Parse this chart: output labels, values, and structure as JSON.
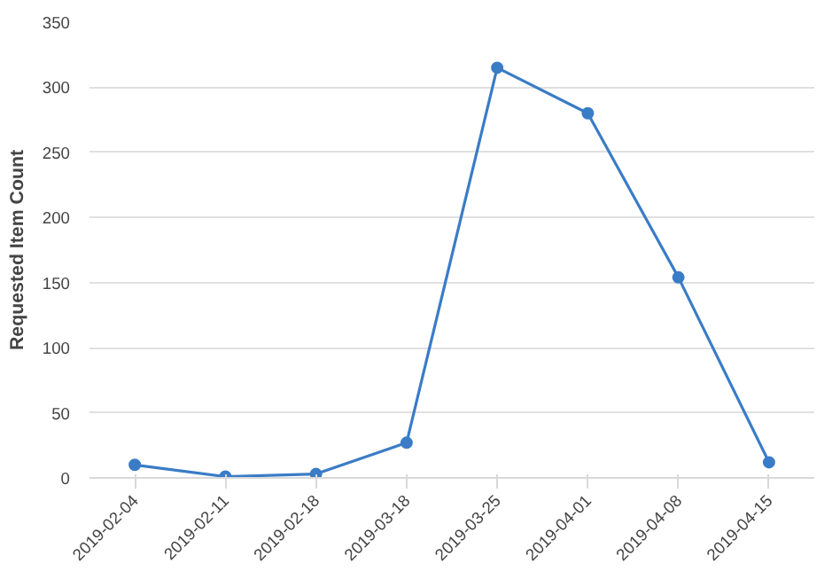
{
  "chart_data": {
    "type": "line",
    "ylabel": "Requested Item Count",
    "categories": [
      "2019-02-04",
      "2019-02-11",
      "2019-02-18",
      "2019-03-18",
      "2019-03-25",
      "2019-04-01",
      "2019-04-08",
      "2019-04-15"
    ],
    "series": [
      {
        "color": "#3a7cc6",
        "values": [
          10,
          1,
          3,
          27,
          315,
          280,
          154,
          12
        ]
      }
    ],
    "ylim": [
      0,
      350
    ],
    "yticks": [
      0,
      50,
      100,
      150,
      200,
      250,
      300,
      350
    ],
    "grid": "y",
    "marker": "circle",
    "line_style": "solid"
  }
}
